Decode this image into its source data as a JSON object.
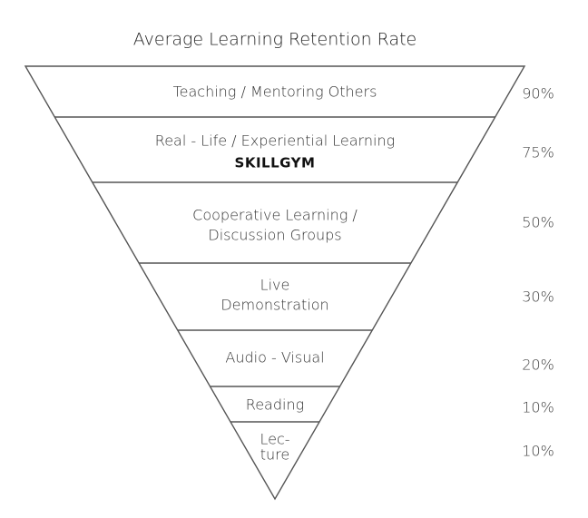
{
  "title": "Average Learning Retention Rate",
  "levels": [
    {
      "lines": [
        "Teaching / Mentoring Others"
      ],
      "rate": "90%"
    },
    {
      "lines": [
        "Real - Life / Experiential Learning"
      ],
      "badge": "SKILLGYM",
      "rate": "75%"
    },
    {
      "lines": [
        "Cooperative Learning /",
        "Discussion Groups"
      ],
      "rate": "50%"
    },
    {
      "lines": [
        "Live",
        "Demonstration"
      ],
      "rate": "30%"
    },
    {
      "lines": [
        "Audio - Visual"
      ],
      "rate": "20%"
    },
    {
      "lines": [
        "Reading"
      ],
      "rate": "10%"
    },
    {
      "lines": [
        "Lec-",
        "ture"
      ],
      "rate": "10%"
    }
  ]
}
